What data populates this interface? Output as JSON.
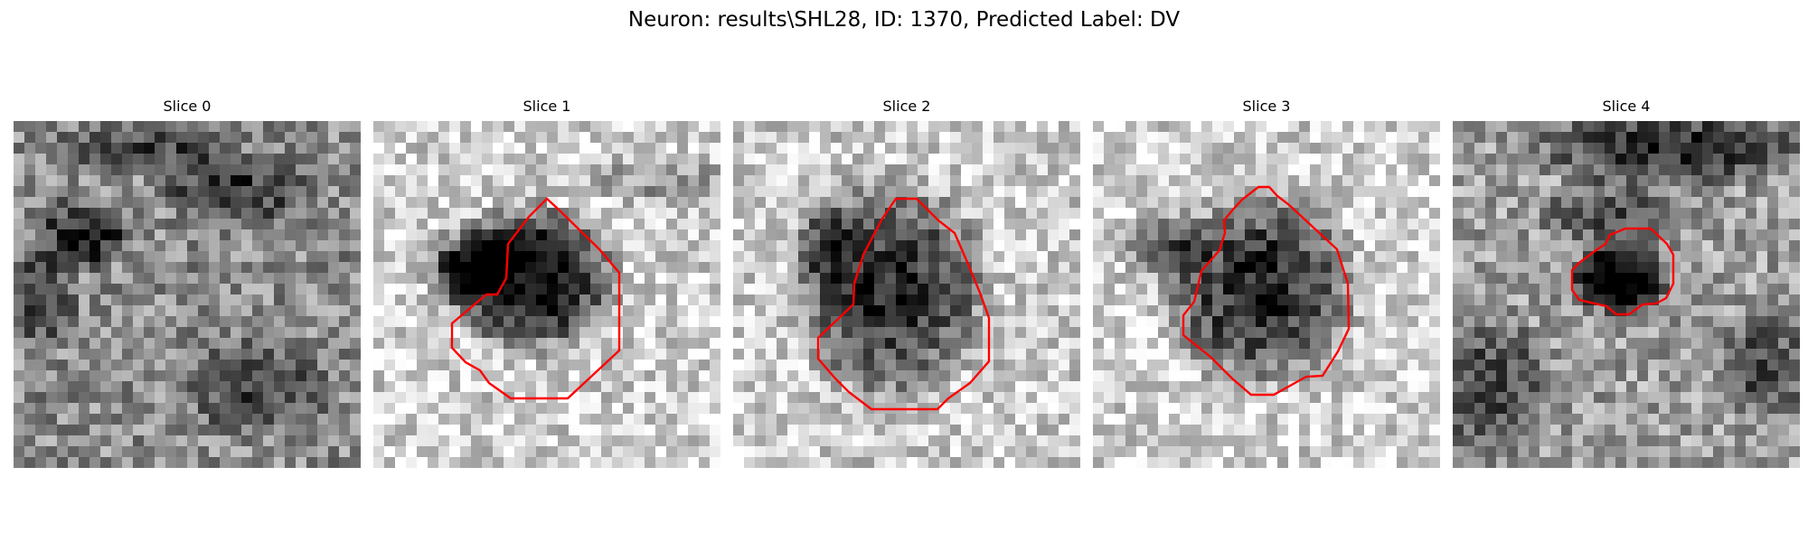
{
  "figure": {
    "title": "Neuron: results\\SHL28, ID: 1370, Predicted Label: DV"
  },
  "contour_color": "#ff0000",
  "slices": [
    {
      "title": "Slice 0",
      "contour": false,
      "seed": 11,
      "base": 0.55,
      "dark_pattern": "scatter"
    },
    {
      "title": "Slice 1",
      "contour": true,
      "seed": 23,
      "base": 0.82,
      "dark_pattern": "blob_left"
    },
    {
      "title": "Slice 2",
      "contour": true,
      "seed": 37,
      "base": 0.8,
      "dark_pattern": "blob_center"
    },
    {
      "title": "Slice 3",
      "contour": true,
      "seed": 41,
      "base": 0.82,
      "dark_pattern": "blob_right"
    },
    {
      "title": "Slice 4",
      "contour": true,
      "seed": 53,
      "base": 0.62,
      "dark_pattern": "blob_small"
    }
  ]
}
